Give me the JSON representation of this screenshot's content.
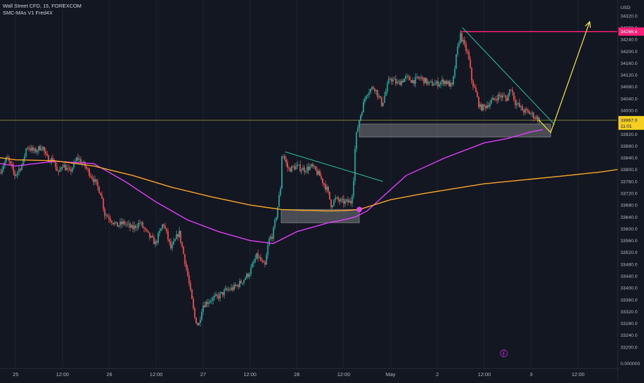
{
  "header": {
    "symbol_line": "Wall Street CFD, 15, FOREXCOM",
    "indicator_line": "SMC-MAs V1 Fred4X",
    "currency": "USD"
  },
  "colors": {
    "background": "#131722",
    "up": "#26a69a",
    "down": "#ef5350",
    "ma_fast": "#e040fb",
    "ma_slow": "#ffa726",
    "trend_line": "#26c6a0",
    "projection": "#ffeb3b",
    "resistance": "#ff1e78",
    "price_line": "#a6a63a",
    "zone": "#b0b0b0"
  },
  "chart_data": {
    "type": "candlestick",
    "symbol": "Wall Street CFD",
    "interval": "15",
    "y_axis": {
      "ticks": [
        34320.0,
        34280.0,
        34240.0,
        34200.0,
        34160.0,
        34120.0,
        34080.0,
        34040.0,
        34000.0,
        33960.0,
        33920.0,
        33880.0,
        33840.0,
        33800.0,
        33760.0,
        33720.0,
        33680.0,
        33640.0,
        33600.0,
        33560.0,
        33520.0,
        33480.0,
        33440.0,
        33400.0,
        33360.0,
        33320.0,
        33280.0,
        33240.0,
        33200.0
      ],
      "tick_labels": [
        "34320.0",
        "34280.0",
        "34240.0",
        "34200.0",
        "34160.0",
        "34120.0",
        "34080.0",
        "34040.0",
        "34000.0",
        "33960.0",
        "33920.0",
        "33880.0",
        "33840.0",
        "33800.0",
        "33760.0",
        "33720.0",
        "33680.0",
        "33640.0",
        "33600.0",
        "33560.0",
        "33520.0",
        "33480.0",
        "33440.0",
        "33400.0",
        "33360.0",
        "33320.0",
        "33280.0",
        "33240.0",
        "33200.0"
      ],
      "bottom_label": "0.000000",
      "range": [
        33160,
        34350
      ]
    },
    "x_axis": {
      "range": [
        -2,
        77
      ],
      "ticks": [
        {
          "x": 0,
          "label": "25"
        },
        {
          "x": 6,
          "label": "12:00"
        },
        {
          "x": 12,
          "label": "26"
        },
        {
          "x": 18,
          "label": "12:00"
        },
        {
          "x": 24,
          "label": "27"
        },
        {
          "x": 30,
          "label": "12:00"
        },
        {
          "x": 36,
          "label": "28"
        },
        {
          "x": 42,
          "label": "12:00"
        },
        {
          "x": 48,
          "label": "May"
        },
        {
          "x": 54,
          "label": "2"
        },
        {
          "x": 60,
          "label": "12:00"
        },
        {
          "x": 66,
          "label": "3"
        },
        {
          "x": 72,
          "label": "12:00"
        }
      ]
    },
    "last_price": {
      "value": 33967.0,
      "label": "33967.0",
      "countdown": "11:01"
    },
    "resistance": {
      "value": 34266.6,
      "label": "34266.6"
    },
    "price_path": [
      [
        -2,
        33790
      ],
      [
        -1,
        33840
      ],
      [
        0,
        33780
      ],
      [
        1,
        33820
      ],
      [
        1.5,
        33880
      ],
      [
        2.5,
        33860
      ],
      [
        3.5,
        33880
      ],
      [
        4,
        33840
      ],
      [
        5,
        33830
      ],
      [
        5.5,
        33780
      ],
      [
        6,
        33820
      ],
      [
        7,
        33790
      ],
      [
        8,
        33840
      ],
      [
        9,
        33810
      ],
      [
        10,
        33770
      ],
      [
        11,
        33720
      ],
      [
        11.5,
        33650
      ],
      [
        12,
        33640
      ],
      [
        13,
        33610
      ],
      [
        14,
        33620
      ],
      [
        15,
        33600
      ],
      [
        16,
        33620
      ],
      [
        17,
        33580
      ],
      [
        18,
        33550
      ],
      [
        19,
        33620
      ],
      [
        20,
        33530
      ],
      [
        21,
        33590
      ],
      [
        22,
        33460
      ],
      [
        22.7,
        33350
      ],
      [
        23,
        33300
      ],
      [
        23.5,
        33270
      ],
      [
        24,
        33340
      ],
      [
        25,
        33360
      ],
      [
        26,
        33370
      ],
      [
        27,
        33390
      ],
      [
        28,
        33400
      ],
      [
        29,
        33420
      ],
      [
        30,
        33450
      ],
      [
        31,
        33510
      ],
      [
        32,
        33470
      ],
      [
        32.5,
        33560
      ],
      [
        33,
        33580
      ],
      [
        33.5,
        33650
      ],
      [
        34,
        33740
      ],
      [
        34.2,
        33860
      ],
      [
        34.6,
        33830
      ],
      [
        35,
        33800
      ],
      [
        36,
        33810
      ],
      [
        37,
        33800
      ],
      [
        38,
        33810
      ],
      [
        39,
        33780
      ],
      [
        40,
        33730
      ],
      [
        40.5,
        33680
      ],
      [
        41,
        33700
      ],
      [
        42,
        33690
      ],
      [
        43,
        33690
      ],
      [
        43.3,
        33740
      ],
      [
        43.6,
        33900
      ],
      [
        44,
        33960
      ],
      [
        44.5,
        34010
      ],
      [
        45,
        34060
      ],
      [
        46,
        34080
      ],
      [
        47,
        34020
      ],
      [
        48,
        34110
      ],
      [
        49,
        34090
      ],
      [
        50,
        34110
      ],
      [
        51,
        34100
      ],
      [
        52,
        34110
      ],
      [
        53,
        34090
      ],
      [
        54,
        34090
      ],
      [
        55,
        34100
      ],
      [
        56,
        34080
      ],
      [
        56.5,
        34180
      ],
      [
        57,
        34260
      ],
      [
        57.5,
        34220
      ],
      [
        58,
        34190
      ],
      [
        58.5,
        34100
      ],
      [
        59,
        34060
      ],
      [
        59.5,
        34010
      ],
      [
        60,
        34010
      ],
      [
        61,
        34030
      ],
      [
        62,
        34050
      ],
      [
        63,
        34040
      ],
      [
        63.5,
        34080
      ],
      [
        64,
        34030
      ],
      [
        65,
        34000
      ],
      [
        66,
        33990
      ],
      [
        67,
        33970
      ]
    ],
    "series": [
      {
        "name": "SMC-MAs V1 Fred4X",
        "type": "line",
        "x": [
          -2,
          0,
          5,
          10,
          14,
          18,
          22,
          26,
          30,
          33,
          36,
          40,
          42,
          43.5,
          45,
          50,
          55,
          60,
          63,
          66,
          67.5
        ],
        "y": [
          33820,
          33812,
          33828,
          33820,
          33760,
          33690,
          33630,
          33590,
          33560,
          33550,
          33590,
          33620,
          33630,
          33640,
          33660,
          33780,
          33840,
          33890,
          33905,
          33928,
          33935
        ]
      },
      {
        "name": "SMC-MAs V1 Fred4X",
        "type": "line",
        "x": [
          -2,
          0,
          5,
          10,
          15,
          20,
          25,
          30,
          34,
          37,
          40,
          42,
          44,
          48,
          52,
          56,
          60,
          65,
          70,
          75,
          77,
          78
        ],
        "y": [
          33840,
          33833,
          33830,
          33812,
          33780,
          33740,
          33708,
          33680,
          33665,
          33662,
          33660,
          33661,
          33665,
          33698,
          33718,
          33735,
          33752,
          33765,
          33778,
          33792,
          33800,
          33810
        ]
      }
    ],
    "trend_lines": [
      {
        "x": [
          34.5,
          47
        ],
        "y": [
          33860,
          33760
        ]
      },
      {
        "x": [
          57.2,
          69
        ],
        "y": [
          34280,
          33952
        ]
      }
    ],
    "zones": [
      {
        "x": [
          34,
          44
        ],
        "y": [
          33620,
          33665
        ]
      },
      {
        "x": [
          44,
          68.5
        ],
        "y": [
          33910,
          33954
        ]
      }
    ],
    "projection": {
      "x": [
        67,
        68.5,
        73.5
      ],
      "y": [
        33967,
        33925,
        34300
      ]
    },
    "marker": {
      "x": 44,
      "y": 33665
    }
  }
}
